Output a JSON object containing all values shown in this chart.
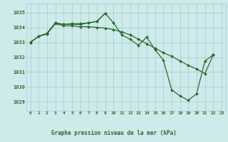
{
  "bg_color": "#ceeaea",
  "grid_color": "#9ecfcf",
  "line_color": "#2d6a2d",
  "ylim": [
    1028.4,
    1035.6
  ],
  "yticks": [
    1029,
    1030,
    1031,
    1032,
    1033,
    1034,
    1035
  ],
  "title": "Graphe pression niveau de la mer (hPa)",
  "title_color": "#2d6a2d",
  "tick_color": "#2d6a2d",
  "line1": [
    1033.0,
    1033.4,
    1033.6,
    1034.3,
    1034.2,
    1034.2,
    1034.2,
    1034.3,
    1034.4,
    1034.95,
    1034.3,
    1033.5,
    1033.2,
    1032.8,
    1033.35,
    1032.5,
    1031.8,
    1029.8,
    1029.4,
    1029.1,
    1029.55,
    1031.75,
    1032.15,
    null
  ],
  "line2": [
    1033.0,
    1033.4,
    1033.55,
    1034.25,
    1034.1,
    1034.1,
    1034.05,
    1034.05,
    1034.0,
    1033.95,
    1033.85,
    1033.7,
    1033.5,
    1033.2,
    1032.9,
    1032.6,
    1032.3,
    1032.05,
    1031.75,
    1031.45,
    1031.2,
    1030.9,
    1032.15,
    null
  ],
  "line3": [
    1033.0,
    1033.4,
    1033.6,
    1034.3,
    1034.2,
    1034.25,
    1034.25,
    1034.3,
    1034.4,
    1034.95,
    null,
    null,
    null,
    null,
    null,
    null,
    null,
    null,
    null,
    null,
    null,
    null,
    null,
    null
  ]
}
